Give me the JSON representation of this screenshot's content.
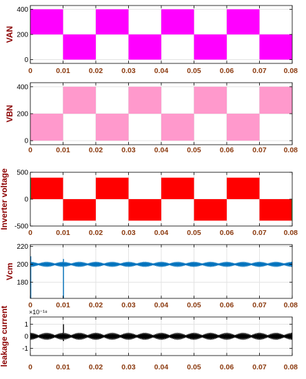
{
  "chart_data": [
    {
      "type": "line",
      "ylabel": "VAN",
      "color": "#ff00ff",
      "fill_style": "solid",
      "xlim": [
        0,
        0.08
      ],
      "ylim": [
        -30,
        430
      ],
      "xticks": [
        "0",
        "0.01",
        "0.02",
        "0.03",
        "0.04",
        "0.05",
        "0.06",
        "0.07",
        "0.08"
      ],
      "yticks": [
        {
          "v": 0,
          "t": "0"
        },
        {
          "v": 200,
          "t": "200"
        },
        {
          "v": 400,
          "t": "400"
        }
      ],
      "bands": [
        {
          "x0": 0,
          "x1": 0.01,
          "y0": 200,
          "y1": 400
        },
        {
          "x0": 0.01,
          "x1": 0.02,
          "y0": 0,
          "y1": 200
        },
        {
          "x0": 0.02,
          "x1": 0.03,
          "y0": 200,
          "y1": 400
        },
        {
          "x0": 0.03,
          "x1": 0.04,
          "y0": 0,
          "y1": 200
        },
        {
          "x0": 0.04,
          "x1": 0.05,
          "y0": 200,
          "y1": 400
        },
        {
          "x0": 0.05,
          "x1": 0.06,
          "y0": 0,
          "y1": 200
        },
        {
          "x0": 0.06,
          "x1": 0.07,
          "y0": 200,
          "y1": 400
        },
        {
          "x0": 0.07,
          "x1": 0.08,
          "y0": 0,
          "y1": 200
        }
      ],
      "grid": true
    },
    {
      "type": "line",
      "ylabel": "VBN",
      "color": "#ff99cc",
      "fill_style": "solid",
      "xlim": [
        0,
        0.08
      ],
      "ylim": [
        -30,
        430
      ],
      "xticks": [
        "0",
        "0.01",
        "0.02",
        "0.03",
        "0.04",
        "0.05",
        "0.06",
        "0.07",
        "0.08"
      ],
      "yticks": [
        {
          "v": 0,
          "t": "0"
        },
        {
          "v": 200,
          "t": "200"
        },
        {
          "v": 400,
          "t": "400"
        }
      ],
      "bands": [
        {
          "x0": 0,
          "x1": 0.01,
          "y0": 0,
          "y1": 200
        },
        {
          "x0": 0.01,
          "x1": 0.02,
          "y0": 200,
          "y1": 400
        },
        {
          "x0": 0.02,
          "x1": 0.03,
          "y0": 0,
          "y1": 200
        },
        {
          "x0": 0.03,
          "x1": 0.04,
          "y0": 200,
          "y1": 400
        },
        {
          "x0": 0.04,
          "x1": 0.05,
          "y0": 0,
          "y1": 200
        },
        {
          "x0": 0.05,
          "x1": 0.06,
          "y0": 200,
          "y1": 400
        },
        {
          "x0": 0.06,
          "x1": 0.07,
          "y0": 0,
          "y1": 200
        },
        {
          "x0": 0.07,
          "x1": 0.08,
          "y0": 200,
          "y1": 400
        }
      ],
      "grid": true
    },
    {
      "type": "line",
      "ylabel": "Inverter voltage",
      "color": "#ff0000",
      "fill_style": "solid",
      "xlim": [
        0,
        0.08
      ],
      "ylim": [
        -500,
        500
      ],
      "xticks": [
        "0",
        "0.01",
        "0.02",
        "0.03",
        "0.04",
        "0.05",
        "0.06",
        "0.07",
        "0.08"
      ],
      "yticks": [
        {
          "v": -500,
          "t": "-500"
        },
        {
          "v": 0,
          "t": "0"
        },
        {
          "v": 500,
          "t": "500"
        }
      ],
      "bands": [
        {
          "x0": 0,
          "x1": 0.01,
          "y0": 0,
          "y1": 400
        },
        {
          "x0": 0.01,
          "x1": 0.02,
          "y0": -400,
          "y1": 0
        },
        {
          "x0": 0.02,
          "x1": 0.03,
          "y0": 0,
          "y1": 400
        },
        {
          "x0": 0.03,
          "x1": 0.04,
          "y0": -400,
          "y1": 0
        },
        {
          "x0": 0.04,
          "x1": 0.05,
          "y0": 0,
          "y1": 400
        },
        {
          "x0": 0.05,
          "x1": 0.06,
          "y0": -400,
          "y1": 0
        },
        {
          "x0": 0.06,
          "x1": 0.07,
          "y0": 0,
          "y1": 400
        },
        {
          "x0": 0.07,
          "x1": 0.08,
          "y0": -400,
          "y1": 0
        }
      ],
      "grid": true
    },
    {
      "type": "line",
      "ylabel": "Vcm",
      "color": "#0072bd",
      "xlim": [
        0,
        0.08
      ],
      "ylim": [
        162,
        222
      ],
      "xticks": [
        "0",
        "0.01",
        "0.02",
        "0.03",
        "0.04",
        "0.05",
        "0.06",
        "0.07",
        "0.08"
      ],
      "yticks": [
        {
          "v": 180,
          "t": "180"
        },
        {
          "v": 200,
          "t": "200"
        },
        {
          "v": 220,
          "t": "220"
        }
      ],
      "baseline": 200,
      "ripple_amplitude": 3,
      "ripple_envelope_period": 0.005,
      "events": [
        {
          "x": 0.0,
          "y_min": 162,
          "y_max": 209
        },
        {
          "x": 0.01,
          "y_min": 162,
          "y_max": 206
        }
      ],
      "grid": true
    },
    {
      "type": "line",
      "ylabel": "leakage current",
      "color": "#000000",
      "xlim": [
        0,
        0.08
      ],
      "ylim": [
        -1.6,
        1.6
      ],
      "exponent": "×10⁻¹⁸",
      "xticks": [
        "0",
        "0.01",
        "0.02",
        "0.03",
        "0.04",
        "0.05",
        "0.06",
        "0.07",
        "0.08"
      ],
      "yticks": [
        {
          "v": -1,
          "t": "-1"
        },
        {
          "v": 0,
          "t": "0"
        },
        {
          "v": 1,
          "t": "1"
        }
      ],
      "baseline": 0,
      "ripple_amplitude": 0.3,
      "ripple_envelope_period": 0.005,
      "events": [
        {
          "x": 0.01,
          "y_min": -0.4,
          "y_max": 1.0
        }
      ],
      "grid": true
    }
  ]
}
